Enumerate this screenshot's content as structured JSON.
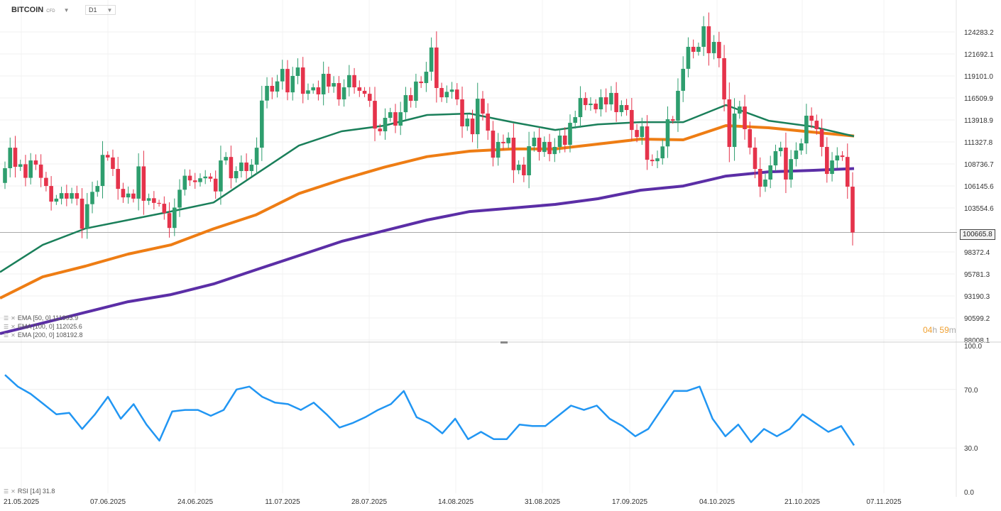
{
  "header": {
    "symbol": "BITCOIN",
    "instrument_type": "CFD",
    "timeframe": "D1"
  },
  "timer": {
    "hours": "04",
    "h": "h",
    "minutes": "59",
    "m": "m"
  },
  "legend": {
    "ema50": "EMA [50, 0] 111993.9",
    "ema100": "EMA [100, 0] 112025.6",
    "ema200": "EMA [200, 0] 108192.8",
    "rsi": "RSI [14] 31.8"
  },
  "current_price": "100665.8",
  "colors": {
    "up": "#2e9e6e",
    "down": "#e5334b",
    "ema50": "#1a7f5a",
    "ema100": "#ee7d14",
    "ema200": "#5b2ea6",
    "rsi": "#2196f3",
    "timer": "#f0a030"
  },
  "chart_data": [
    {
      "type": "candlestick",
      "price_ticks": [
        "124283.2",
        "121692.1",
        "119101.0",
        "116509.9",
        "113918.9",
        "111327.8",
        "108736.7",
        "106145.6",
        "103554.6",
        "98372.4",
        "95781.3",
        "93190.3",
        "90599.2",
        "88008.1"
      ],
      "x_ticks": [
        "21.05.2025",
        "07.06.2025",
        "24.06.2025",
        "11.07.2025",
        "28.07.2025",
        "14.08.2025",
        "31.08.2025",
        "17.09.2025",
        "04.10.2025",
        "21.10.2025",
        "07.11.2025"
      ],
      "ylim": [
        88008.1,
        124283.2
      ],
      "first_open": 106500,
      "close": [
        108236,
        110650,
        108400,
        108700,
        107100,
        109150,
        108660,
        107100,
        106140,
        104300,
        104650,
        105300,
        104650,
        105300,
        104650,
        101100,
        104000,
        105450,
        106140,
        109800,
        109500,
        108150,
        105800,
        104800,
        105250,
        104650,
        108450,
        104400,
        104700,
        104150,
        104050,
        102950,
        101200,
        103600,
        105700,
        107350,
        106800,
        106600,
        107050,
        107250,
        107000,
        105500,
        109150,
        109560,
        107050,
        107900,
        108900,
        107900,
        108650,
        110650,
        116200,
        117930,
        117260,
        118460,
        119930,
        117170,
        119100,
        120100,
        117000,
        117400,
        117760,
        116930,
        119350,
        117850,
        118260,
        116340,
        117760,
        119200,
        117760,
        117350,
        117000,
        116170,
        112900,
        112580,
        114170,
        114830,
        113250,
        114830,
        116840,
        116170,
        118440,
        118260,
        119600,
        122450,
        117680,
        116590,
        117230,
        117500,
        116340,
        113160,
        114080,
        112240,
        116420,
        114670,
        112660,
        109480,
        111330,
        111170,
        111830,
        108000,
        108650,
        107400,
        110830,
        111830,
        110150,
        111330,
        109900,
        110740,
        112080,
        110990,
        113580,
        114250,
        116500,
        115670,
        115840,
        115170,
        116590,
        115750,
        117100,
        114840,
        115670,
        115090,
        112740,
        111910,
        113160,
        109230,
        109060,
        109400,
        110800,
        114000,
        113830,
        117350,
        119940,
        122530,
        121940,
        122530,
        124950,
        121780,
        123110,
        121190,
        116340,
        110740,
        114670,
        115500,
        112830,
        110660,
        108150,
        106060,
        106900,
        108570,
        110240,
        110660,
        106900,
        109310,
        110320,
        111160,
        114420,
        113830,
        112830,
        110740,
        107560,
        109150,
        109730,
        109560,
        106060,
        100665.8
      ],
      "ema50": [
        96000,
        99200,
        101130,
        102130,
        103140,
        104200,
        107560,
        110900,
        112580,
        113250,
        114500,
        114670,
        113660,
        112740,
        113400,
        113660,
        113660,
        115670,
        113830,
        113160,
        111994
      ],
      "ema100": [
        92930,
        95440,
        96700,
        98120,
        99200,
        101100,
        102750,
        105250,
        106900,
        108350,
        109600,
        110240,
        110500,
        110500,
        111080,
        111660,
        111580,
        113250,
        113000,
        112500,
        112026
      ],
      "ema200": [
        88750,
        90000,
        91260,
        92510,
        93350,
        94600,
        96280,
        97950,
        99620,
        100870,
        102130,
        103130,
        103550,
        103970,
        104640,
        105640,
        106140,
        107310,
        107810,
        107980,
        108193
      ],
      "current_price_line": 100665.8
    },
    {
      "type": "line",
      "series": [
        {
          "name": "RSI [14]",
          "values": [
            80,
            72,
            67,
            60,
            53,
            54,
            43,
            53,
            65,
            50,
            60,
            46,
            35,
            55,
            56,
            56,
            52,
            56,
            70,
            72,
            65,
            61,
            60,
            56,
            61,
            53,
            44,
            47,
            51,
            56,
            60,
            69,
            51,
            47,
            40,
            50,
            36,
            41,
            36,
            36,
            46,
            45,
            45,
            52,
            59,
            56,
            59,
            50,
            45,
            38,
            43,
            56,
            69,
            69,
            72,
            50,
            38,
            46,
            34,
            43,
            38,
            43,
            53,
            47,
            41,
            45,
            31.8
          ]
        }
      ],
      "ylim": [
        0,
        100
      ],
      "y_ticks": [
        "100.0",
        "70.0",
        "30.0",
        "0.0"
      ]
    }
  ]
}
